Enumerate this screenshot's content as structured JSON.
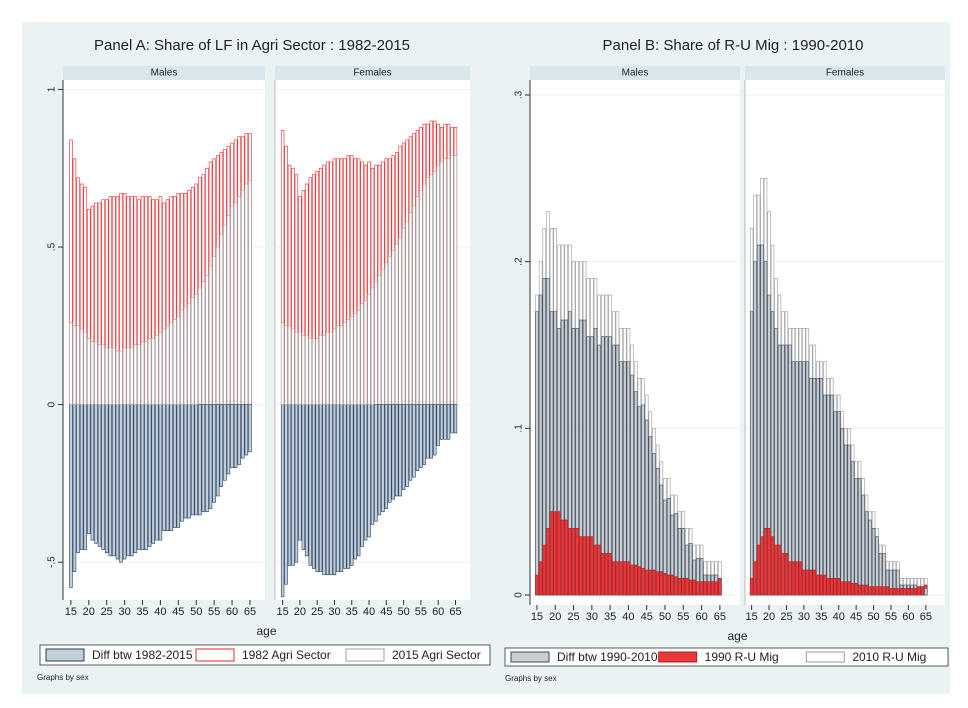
{
  "chart_data": [
    {
      "type": "bar",
      "title": "Panel A: Share of LF in Agri Sector : 1982-2015",
      "xlabel": "age",
      "note": "Graphs by sex",
      "grid": true,
      "legend": "bottom",
      "panels": [
        {
          "title": "Males"
        },
        {
          "title": "Females"
        }
      ],
      "x": [
        15,
        16,
        17,
        18,
        19,
        20,
        21,
        22,
        23,
        24,
        25,
        26,
        27,
        28,
        29,
        30,
        31,
        32,
        33,
        34,
        35,
        36,
        37,
        38,
        39,
        40,
        41,
        42,
        43,
        44,
        45,
        46,
        47,
        48,
        49,
        50,
        51,
        52,
        53,
        54,
        55,
        56,
        57,
        58,
        59,
        60,
        61,
        62,
        63,
        64,
        65
      ],
      "xlim": [
        12.8,
        69.2
      ],
      "xticks": [
        15,
        20,
        25,
        30,
        35,
        40,
        45,
        50,
        55,
        60,
        65
      ],
      "ylim": [
        -0.62,
        1.03
      ],
      "yticks": [
        {
          "value": -0.5,
          "label": "-.5"
        },
        0,
        {
          "value": 0.5,
          "label": ".5"
        },
        1
      ],
      "series": [
        {
          "name": "Diff btw 1982-2015",
          "color": "#c3cedb",
          "edgecolor": "#1f3b5a",
          "values": [
            [
              -0.58,
              -0.53,
              -0.47,
              -0.46,
              -0.46,
              -0.41,
              -0.43,
              -0.44,
              -0.45,
              -0.46,
              -0.47,
              -0.48,
              -0.48,
              -0.49,
              -0.5,
              -0.49,
              -0.48,
              -0.48,
              -0.47,
              -0.46,
              -0.46,
              -0.46,
              -0.45,
              -0.44,
              -0.43,
              -0.43,
              -0.4,
              -0.4,
              -0.4,
              -0.39,
              -0.39,
              -0.37,
              -0.36,
              -0.36,
              -0.35,
              -0.35,
              -0.35,
              -0.34,
              -0.34,
              -0.33,
              -0.31,
              -0.29,
              -0.26,
              -0.24,
              -0.22,
              -0.2,
              -0.2,
              -0.19,
              -0.17,
              -0.16,
              -0.15
            ],
            [
              -0.61,
              -0.57,
              -0.51,
              -0.51,
              -0.5,
              -0.43,
              -0.46,
              -0.48,
              -0.51,
              -0.52,
              -0.53,
              -0.53,
              -0.54,
              -0.54,
              -0.54,
              -0.54,
              -0.53,
              -0.53,
              -0.52,
              -0.52,
              -0.51,
              -0.49,
              -0.48,
              -0.45,
              -0.43,
              -0.42,
              -0.38,
              -0.37,
              -0.35,
              -0.34,
              -0.33,
              -0.31,
              -0.3,
              -0.29,
              -0.29,
              -0.27,
              -0.26,
              -0.24,
              -0.23,
              -0.21,
              -0.2,
              -0.19,
              -0.17,
              -0.17,
              -0.16,
              -0.13,
              -0.11,
              -0.11,
              -0.11,
              -0.09,
              -0.09
            ]
          ]
        },
        {
          "name": "1982 Agri Sector",
          "color": "#ffffff",
          "edgecolor": "#e8262a",
          "values": [
            [
              0.84,
              0.78,
              0.72,
              0.7,
              0.69,
              0.62,
              0.63,
              0.64,
              0.64,
              0.65,
              0.65,
              0.66,
              0.66,
              0.66,
              0.67,
              0.67,
              0.66,
              0.66,
              0.66,
              0.65,
              0.66,
              0.66,
              0.66,
              0.65,
              0.65,
              0.66,
              0.64,
              0.65,
              0.66,
              0.66,
              0.67,
              0.67,
              0.67,
              0.68,
              0.69,
              0.7,
              0.72,
              0.73,
              0.75,
              0.77,
              0.78,
              0.79,
              0.8,
              0.81,
              0.82,
              0.83,
              0.84,
              0.85,
              0.85,
              0.86,
              0.86
            ],
            [
              0.87,
              0.82,
              0.76,
              0.75,
              0.73,
              0.66,
              0.68,
              0.7,
              0.72,
              0.73,
              0.74,
              0.75,
              0.76,
              0.77,
              0.77,
              0.78,
              0.78,
              0.78,
              0.78,
              0.79,
              0.79,
              0.78,
              0.78,
              0.77,
              0.76,
              0.77,
              0.75,
              0.76,
              0.76,
              0.77,
              0.78,
              0.78,
              0.79,
              0.8,
              0.82,
              0.83,
              0.84,
              0.85,
              0.86,
              0.87,
              0.88,
              0.89,
              0.89,
              0.9,
              0.9,
              0.89,
              0.88,
              0.89,
              0.89,
              0.88,
              0.88
            ]
          ]
        },
        {
          "name": "2015 Agri Sector",
          "color": "#ffffff",
          "edgecolor": "#a0a0a0",
          "values": [
            [
              0.26,
              0.25,
              0.25,
              0.24,
              0.23,
              0.21,
              0.2,
              0.2,
              0.19,
              0.19,
              0.18,
              0.18,
              0.18,
              0.17,
              0.17,
              0.18,
              0.18,
              0.18,
              0.19,
              0.19,
              0.2,
              0.2,
              0.21,
              0.21,
              0.22,
              0.23,
              0.24,
              0.25,
              0.26,
              0.27,
              0.28,
              0.3,
              0.31,
              0.32,
              0.34,
              0.35,
              0.37,
              0.39,
              0.41,
              0.44,
              0.47,
              0.5,
              0.54,
              0.57,
              0.6,
              0.63,
              0.64,
              0.66,
              0.68,
              0.7,
              0.71
            ],
            [
              0.26,
              0.25,
              0.25,
              0.24,
              0.23,
              0.23,
              0.22,
              0.22,
              0.21,
              0.21,
              0.21,
              0.22,
              0.22,
              0.23,
              0.23,
              0.24,
              0.25,
              0.25,
              0.26,
              0.27,
              0.28,
              0.29,
              0.3,
              0.32,
              0.33,
              0.35,
              0.37,
              0.39,
              0.41,
              0.43,
              0.45,
              0.47,
              0.49,
              0.51,
              0.53,
              0.56,
              0.58,
              0.61,
              0.63,
              0.66,
              0.68,
              0.7,
              0.72,
              0.73,
              0.74,
              0.76,
              0.77,
              0.78,
              0.78,
              0.79,
              0.79
            ]
          ]
        }
      ]
    },
    {
      "type": "bar",
      "title": "Panel B: Share of R-U Mig : 1990-2010",
      "xlabel": "age",
      "note": "Graphs by sex",
      "grid": true,
      "legend": "bottom",
      "panels": [
        {
          "title": "Males"
        },
        {
          "title": "Females"
        }
      ],
      "x": [
        15,
        16,
        17,
        18,
        19,
        20,
        21,
        22,
        23,
        24,
        25,
        26,
        27,
        28,
        29,
        30,
        31,
        32,
        33,
        34,
        35,
        36,
        37,
        38,
        39,
        40,
        41,
        42,
        43,
        44,
        45,
        46,
        47,
        48,
        49,
        50,
        51,
        52,
        53,
        54,
        55,
        56,
        57,
        58,
        59,
        60,
        61,
        62,
        63,
        64,
        65
      ],
      "xlim": [
        13.1,
        70.5
      ],
      "xticks": [
        15,
        20,
        25,
        30,
        35,
        40,
        45,
        50,
        55,
        60,
        65
      ],
      "ylim": [
        -0.006,
        0.309
      ],
      "yticks": [
        0,
        {
          "value": 0.1,
          "label": ".1"
        },
        {
          "value": 0.2,
          "label": ".2"
        },
        {
          "value": 0.3,
          "label": ".3"
        }
      ],
      "series": [
        {
          "name": "Diff btw 1990-2010",
          "color": "#c9ced3",
          "edgecolor": "#3a4a5a",
          "values": [
            [
              0.17,
              0.18,
              0.19,
              0.19,
              0.17,
              0.17,
              0.16,
              0.165,
              0.165,
              0.17,
              0.16,
              0.16,
              0.165,
              0.165,
              0.155,
              0.155,
              0.16,
              0.15,
              0.155,
              0.155,
              0.155,
              0.15,
              0.15,
              0.14,
              0.14,
              0.14,
              0.132,
              0.122,
              0.113,
              0.114,
              0.105,
              0.095,
              0.085,
              0.076,
              0.066,
              0.057,
              0.058,
              0.048,
              0.049,
              0.04,
              0.04,
              0.03,
              0.031,
              0.021,
              0.022,
              0.022,
              0.012,
              0.012,
              0.012,
              0.012,
              0.01
            ],
            [
              0.17,
              0.2,
              0.21,
              0.21,
              0.2,
              0.18,
              0.17,
              0.16,
              0.15,
              0.15,
              0.15,
              0.15,
              0.14,
              0.14,
              0.14,
              0.14,
              0.14,
              0.13,
              0.13,
              0.13,
              0.13,
              0.12,
              0.12,
              0.12,
              0.11,
              0.11,
              0.1,
              0.09,
              0.09,
              0.08,
              0.07,
              0.07,
              0.06,
              0.05,
              0.045,
              0.04,
              0.035,
              0.025,
              0.025,
              0.015,
              0.015,
              0.015,
              0.015,
              0.006,
              0.006,
              0.006,
              0.006,
              0.006,
              0.005,
              0.005,
              0.004
            ]
          ]
        },
        {
          "name": "1990 R-U Mig",
          "color": "#e8383c",
          "edgecolor": "#b02020",
          "values": [
            [
              0.012,
              0.02,
              0.03,
              0.04,
              0.05,
              0.05,
              0.05,
              0.045,
              0.045,
              0.04,
              0.04,
              0.04,
              0.035,
              0.035,
              0.035,
              0.035,
              0.03,
              0.03,
              0.025,
              0.025,
              0.025,
              0.02,
              0.02,
              0.02,
              0.02,
              0.02,
              0.018,
              0.018,
              0.017,
              0.016,
              0.015,
              0.015,
              0.015,
              0.014,
              0.014,
              0.013,
              0.012,
              0.012,
              0.011,
              0.01,
              0.01,
              0.01,
              0.009,
              0.009,
              0.008,
              0.008,
              0.008,
              0.008,
              0.008,
              0.008,
              0.01
            ],
            [
              0.01,
              0.02,
              0.03,
              0.035,
              0.04,
              0.04,
              0.035,
              0.03,
              0.03,
              0.025,
              0.025,
              0.02,
              0.02,
              0.02,
              0.02,
              0.015,
              0.015,
              0.015,
              0.015,
              0.012,
              0.012,
              0.012,
              0.01,
              0.01,
              0.01,
              0.01,
              0.008,
              0.008,
              0.008,
              0.007,
              0.007,
              0.006,
              0.006,
              0.006,
              0.005,
              0.005,
              0.005,
              0.005,
              0.005,
              0.005,
              0.004,
              0.004,
              0.004,
              0.004,
              0.004,
              0.004,
              0.004,
              0.004,
              0.005,
              0.005,
              0.006
            ]
          ]
        },
        {
          "name": "2010 R-U Mig",
          "color": "#ffffff",
          "edgecolor": "#9a9a9a",
          "values": [
            [
              0.18,
              0.2,
              0.22,
              0.23,
              0.22,
              0.22,
              0.21,
              0.21,
              0.21,
              0.21,
              0.2,
              0.2,
              0.2,
              0.2,
              0.19,
              0.19,
              0.19,
              0.18,
              0.18,
              0.18,
              0.18,
              0.17,
              0.17,
              0.16,
              0.16,
              0.16,
              0.15,
              0.14,
              0.13,
              0.13,
              0.12,
              0.11,
              0.1,
              0.09,
              0.08,
              0.07,
              0.07,
              0.06,
              0.06,
              0.05,
              0.05,
              0.04,
              0.04,
              0.03,
              0.03,
              0.03,
              0.02,
              0.02,
              0.02,
              0.02,
              0.02
            ],
            [
              0.22,
              0.24,
              0.24,
              0.25,
              0.25,
              0.23,
              0.21,
              0.19,
              0.18,
              0.17,
              0.17,
              0.16,
              0.16,
              0.16,
              0.16,
              0.16,
              0.16,
              0.15,
              0.15,
              0.14,
              0.14,
              0.14,
              0.13,
              0.13,
              0.12,
              0.12,
              0.11,
              0.1,
              0.1,
              0.09,
              0.08,
              0.08,
              0.07,
              0.06,
              0.05,
              0.05,
              0.04,
              0.03,
              0.03,
              0.02,
              0.02,
              0.02,
              0.02,
              0.01,
              0.01,
              0.01,
              0.01,
              0.01,
              0.01,
              0.01,
              0.01
            ]
          ]
        }
      ]
    }
  ]
}
